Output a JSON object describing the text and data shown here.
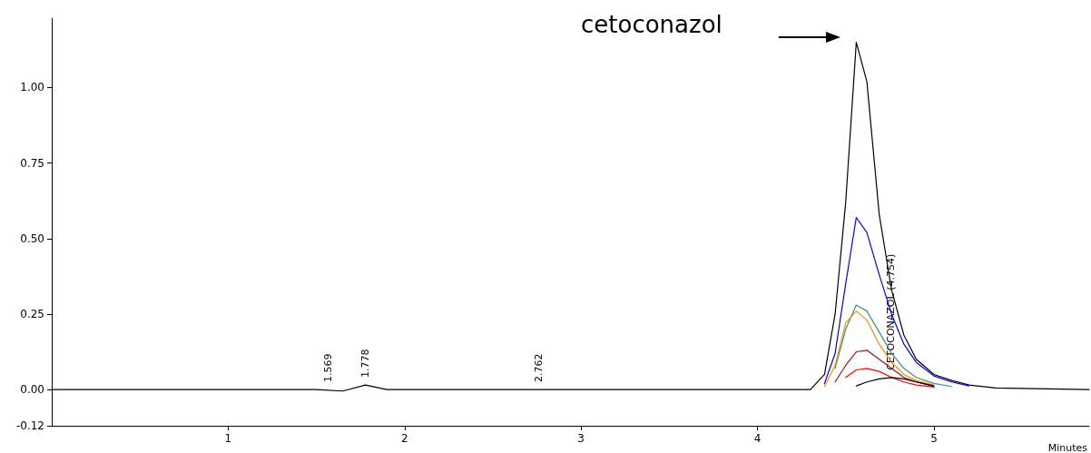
{
  "chart_data": {
    "type": "line",
    "xlabel": "Minutes",
    "x": [
      0,
      1.5,
      1.65,
      1.778,
      1.9,
      4.0,
      4.3,
      4.38,
      4.44,
      4.5,
      4.56,
      4.62,
      4.69,
      4.76,
      4.83,
      4.9,
      5.0,
      5.1,
      5.2,
      5.35,
      5.88
    ],
    "series": [
      {
        "color": "#000000",
        "values": [
          0,
          0,
          -0.005,
          0.015,
          0,
          0,
          0,
          0.05,
          0.25,
          0.62,
          1.15,
          1.02,
          0.58,
          0.33,
          0.18,
          0.1,
          0.05,
          0.03,
          0.015,
          0.005,
          0
        ]
      },
      {
        "color": "#0000ff",
        "x": [
          4.38,
          4.44,
          4.5,
          4.56,
          4.62,
          4.69,
          4.76,
          4.83,
          4.9,
          5.0,
          5.1,
          5.2
        ],
        "values": [
          0.02,
          0.12,
          0.35,
          0.57,
          0.52,
          0.38,
          0.25,
          0.15,
          0.09,
          0.045,
          0.025,
          0.012
        ]
      },
      {
        "color": "#3a8c8c",
        "x": [
          4.44,
          4.5,
          4.56,
          4.62,
          4.69,
          4.76,
          4.83,
          4.9,
          5.0,
          5.1
        ],
        "values": [
          0.07,
          0.2,
          0.28,
          0.26,
          0.19,
          0.12,
          0.07,
          0.04,
          0.02,
          0.01
        ]
      },
      {
        "color": "#ff8c00",
        "x": [
          4.38,
          4.44,
          4.5,
          4.56,
          4.62,
          4.69,
          4.76,
          4.83,
          4.9,
          5.0
        ],
        "values": [
          0.01,
          0.08,
          0.22,
          0.26,
          0.23,
          0.15,
          0.09,
          0.05,
          0.03,
          0.015
        ]
      },
      {
        "color": "#8b1a1a",
        "x": [
          4.44,
          4.5,
          4.56,
          4.62,
          4.69,
          4.76,
          4.83,
          4.9,
          5.0
        ],
        "values": [
          0.025,
          0.08,
          0.125,
          0.13,
          0.1,
          0.07,
          0.04,
          0.025,
          0.01
        ]
      },
      {
        "color": "#ff0000",
        "x": [
          4.5,
          4.56,
          4.62,
          4.69,
          4.76,
          4.83,
          4.9,
          5.0
        ],
        "values": [
          0.04,
          0.065,
          0.07,
          0.06,
          0.04,
          0.025,
          0.015,
          0.008
        ]
      },
      {
        "color": "#000000",
        "x": [
          4.56,
          4.62,
          4.69,
          4.76,
          4.83,
          4.9,
          5.0
        ],
        "values": [
          0.012,
          0.025,
          0.035,
          0.04,
          0.035,
          0.025,
          0.012
        ]
      }
    ],
    "xlim": [
      0,
      5.88
    ],
    "xticks": [
      1,
      2,
      3,
      4,
      5
    ],
    "ylim": [
      -0.12,
      1.23
    ],
    "yticks": [
      {
        "value": -0.12,
        "label": "-0.12"
      },
      {
        "value": 0,
        "label": "0.00"
      },
      {
        "value": 0.25,
        "label": "0.25"
      },
      {
        "value": 0.5,
        "label": "0.50"
      },
      {
        "value": 0.75,
        "label": "0.75"
      },
      {
        "value": 1,
        "label": "1.00"
      }
    ],
    "grid": false,
    "marker": "none",
    "line_style": "solid",
    "annotations": [
      "cetoconazol",
      {
        "text": "1.569",
        "x": 1.569,
        "y": 0
      },
      {
        "text": "1.778",
        "x": 1.778,
        "y": 0.015
      },
      {
        "text": "2.762",
        "x": 2.762,
        "y": 0
      },
      {
        "text": "CETOCONAZOL (4.754)",
        "x": 4.754,
        "y": 0.04
      }
    ]
  }
}
